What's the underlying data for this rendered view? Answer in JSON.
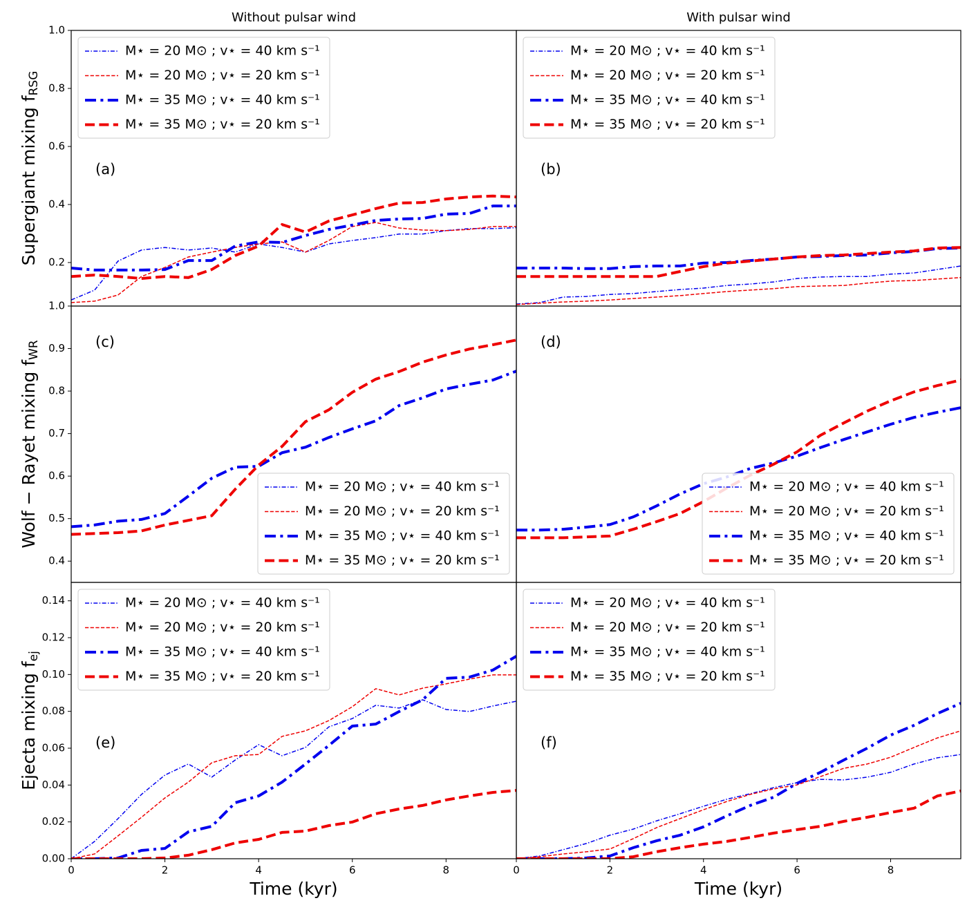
{
  "chart_data": [
    {
      "type": "line",
      "title": "Without pulsar wind",
      "ylabel": "Supergiant mixing f",
      "ylabel_subscript": "RSG",
      "annotation": "(a)",
      "legend": "upper left",
      "x": [
        0,
        0.5,
        1,
        1.5,
        2,
        2.5,
        3,
        3.5,
        4,
        4.5,
        5,
        5.5,
        6,
        6.5,
        7,
        7.5,
        8,
        8.5,
        9,
        9.5
      ],
      "xlim": [
        0,
        9.5
      ],
      "ylim": [
        0.05,
        1.0
      ],
      "yticks": [
        0.2,
        0.4,
        0.6,
        0.8,
        {
          "value": 1.0,
          "label": "1.0"
        }
      ],
      "series": [
        {
          "name": "M⋆ = 20 M⊙ ; v⋆ = 40 km s⁻¹",
          "color": "#0000ee",
          "linestyle": "dashdot",
          "linewidth": 1.5,
          "values": [
            0.071,
            0.105,
            0.205,
            0.243,
            0.252,
            0.243,
            0.25,
            0.236,
            0.264,
            0.252,
            0.236,
            0.264,
            0.276,
            0.286,
            0.298,
            0.298,
            0.31,
            0.317,
            0.317,
            0.32
          ]
        },
        {
          "name": "M⋆ = 20 M⊙ ; v⋆ = 20 km s⁻¹",
          "color": "#ee0000",
          "linestyle": "dashed",
          "linewidth": 1.5,
          "values": [
            0.062,
            0.067,
            0.088,
            0.152,
            0.183,
            0.219,
            0.236,
            0.252,
            0.264,
            0.271,
            0.236,
            0.276,
            0.324,
            0.338,
            0.319,
            0.312,
            0.31,
            0.314,
            0.324,
            0.324
          ]
        },
        {
          "name": "M⋆ = 35 M⊙ ; v⋆ = 40 km s⁻¹",
          "color": "#0000ee",
          "linestyle": "dashdot",
          "linewidth": 4,
          "values": [
            0.181,
            0.174,
            0.174,
            0.174,
            0.176,
            0.207,
            0.207,
            0.257,
            0.271,
            0.269,
            0.293,
            0.314,
            0.329,
            0.345,
            0.35,
            0.352,
            0.367,
            0.369,
            0.395,
            0.395
          ]
        },
        {
          "name": "M⋆ = 35 M⊙ ; v⋆ = 20 km s⁻¹",
          "color": "#ee0000",
          "linestyle": "dashed",
          "linewidth": 4,
          "values": [
            0.152,
            0.157,
            0.152,
            0.145,
            0.152,
            0.148,
            0.176,
            0.224,
            0.257,
            0.331,
            0.305,
            0.343,
            0.364,
            0.386,
            0.405,
            0.407,
            0.419,
            0.426,
            0.429,
            0.426
          ]
        }
      ]
    },
    {
      "type": "line",
      "title": "With pulsar wind",
      "annotation": "(b)",
      "legend": "upper left",
      "x": [
        0,
        0.5,
        1,
        1.5,
        2,
        2.5,
        3,
        3.5,
        4,
        4.5,
        5,
        5.5,
        6,
        6.5,
        7,
        7.5,
        8,
        8.5,
        9,
        9.5
      ],
      "xlim": [
        0,
        9.5
      ],
      "ylim": [
        0.05,
        1.0
      ],
      "series": [
        {
          "name": "M⋆ = 20 M⊙ ; v⋆ = 40 km s⁻¹",
          "color": "#0000ee",
          "linestyle": "dashdot",
          "linewidth": 1.5,
          "values": [
            0.057,
            0.062,
            0.081,
            0.083,
            0.09,
            0.093,
            0.1,
            0.107,
            0.112,
            0.121,
            0.126,
            0.133,
            0.145,
            0.15,
            0.152,
            0.152,
            0.16,
            0.164,
            0.176,
            0.188
          ]
        },
        {
          "name": "M⋆ = 20 M⊙ ; v⋆ = 20 km s⁻¹",
          "color": "#ee0000",
          "linestyle": "dashed",
          "linewidth": 1.5,
          "values": [
            0.055,
            0.06,
            0.064,
            0.067,
            0.071,
            0.076,
            0.081,
            0.086,
            0.093,
            0.1,
            0.105,
            0.11,
            0.117,
            0.119,
            0.121,
            0.129,
            0.136,
            0.138,
            0.143,
            0.148
          ]
        },
        {
          "name": "M⋆ = 35 M⊙ ; v⋆ = 40 km s⁻¹",
          "color": "#0000ee",
          "linestyle": "dashdot",
          "linewidth": 4,
          "values": [
            0.181,
            0.181,
            0.181,
            0.179,
            0.179,
            0.186,
            0.188,
            0.188,
            0.198,
            0.2,
            0.207,
            0.212,
            0.219,
            0.221,
            0.224,
            0.226,
            0.233,
            0.238,
            0.248,
            0.25
          ]
        },
        {
          "name": "M⋆ = 35 M⊙ ; v⋆ = 20 km s⁻¹",
          "color": "#ee0000",
          "linestyle": "dashed",
          "linewidth": 4,
          "values": [
            0.152,
            0.152,
            0.152,
            0.152,
            0.152,
            0.152,
            0.152,
            0.169,
            0.186,
            0.198,
            0.205,
            0.212,
            0.219,
            0.224,
            0.226,
            0.231,
            0.236,
            0.24,
            0.25,
            0.252
          ]
        }
      ]
    },
    {
      "type": "line",
      "ylabel": "Wolf − Rayet mixing f",
      "ylabel_subscript": "WR",
      "annotation": "(c)",
      "legend": "lower right",
      "x": [
        0,
        0.5,
        1,
        1.5,
        2,
        2.5,
        3,
        3.5,
        4,
        4.5,
        5,
        5.5,
        6,
        6.5,
        7,
        7.5,
        8,
        8.5,
        9,
        9.5
      ],
      "xlim": [
        0,
        9.5
      ],
      "ylim": [
        0.35,
        1.0
      ],
      "yticks": [
        0.4,
        0.5,
        0.6,
        0.7,
        0.8,
        0.9,
        {
          "value": 1.0,
          "label": "1.0"
        }
      ],
      "series": [
        {
          "name": "M⋆ = 20 M⊙ ; v⋆ = 40 km s⁻¹",
          "color": "#0000ee",
          "linestyle": "dashdot",
          "linewidth": 1.5,
          "values": [
            null,
            null,
            null,
            null,
            null,
            null,
            null,
            null,
            null,
            null,
            null,
            null,
            null,
            null,
            null,
            null,
            null,
            null,
            null,
            null
          ]
        },
        {
          "name": "M⋆ = 20 M⊙ ; v⋆ = 20 km s⁻¹",
          "color": "#ee0000",
          "linestyle": "dashed",
          "linewidth": 1.5,
          "values": [
            null,
            null,
            null,
            null,
            null,
            null,
            null,
            null,
            null,
            null,
            null,
            null,
            null,
            null,
            null,
            null,
            null,
            null,
            null,
            null
          ]
        },
        {
          "name": "M⋆ = 35 M⊙ ; v⋆ = 40 km s⁻¹",
          "color": "#0000ee",
          "linestyle": "dashdot",
          "linewidth": 4,
          "values": [
            0.481,
            0.485,
            0.494,
            0.498,
            0.512,
            0.553,
            0.595,
            0.621,
            0.623,
            0.655,
            0.668,
            0.691,
            0.711,
            0.73,
            0.766,
            0.784,
            0.805,
            0.816,
            0.826,
            0.847
          ]
        },
        {
          "name": "M⋆ = 35 M⊙ ; v⋆ = 20 km s⁻¹",
          "color": "#ee0000",
          "linestyle": "dashed",
          "linewidth": 4,
          "values": [
            0.463,
            0.465,
            0.467,
            0.471,
            0.485,
            0.496,
            0.507,
            0.569,
            0.626,
            0.67,
            0.728,
            0.756,
            0.797,
            0.828,
            0.846,
            0.868,
            0.885,
            0.899,
            0.909,
            0.92
          ]
        }
      ]
    },
    {
      "type": "line",
      "annotation": "(d)",
      "legend": "lower right",
      "x": [
        0,
        0.5,
        1,
        1.5,
        2,
        2.5,
        3,
        3.5,
        4,
        4.5,
        5,
        5.5,
        6,
        6.5,
        7,
        7.5,
        8,
        8.5,
        9,
        9.5
      ],
      "xlim": [
        0,
        9.5
      ],
      "ylim": [
        0.35,
        1.0
      ],
      "series": [
        {
          "name": "M⋆ = 20 M⊙ ; v⋆ = 40 km s⁻¹",
          "color": "#0000ee",
          "linestyle": "dashdot",
          "linewidth": 1.5,
          "values": [
            null,
            null,
            null,
            null,
            null,
            null,
            null,
            null,
            null,
            null,
            null,
            null,
            null,
            null,
            null,
            null,
            null,
            null,
            null,
            null
          ]
        },
        {
          "name": "M⋆ = 20 M⊙ ; v⋆ = 20 km s⁻¹",
          "color": "#ee0000",
          "linestyle": "dashed",
          "linewidth": 1.5,
          "values": [
            null,
            null,
            null,
            null,
            null,
            null,
            null,
            null,
            null,
            null,
            null,
            null,
            null,
            null,
            null,
            null,
            null,
            null,
            null,
            null
          ]
        },
        {
          "name": "M⋆ = 35 M⊙ ; v⋆ = 40 km s⁻¹",
          "color": "#0000ee",
          "linestyle": "dashdot",
          "linewidth": 4,
          "values": [
            0.473,
            0.473,
            0.475,
            0.48,
            0.486,
            0.504,
            0.53,
            0.558,
            0.582,
            0.598,
            0.618,
            0.631,
            0.647,
            0.667,
            0.686,
            0.704,
            0.722,
            0.738,
            0.75,
            0.761
          ]
        },
        {
          "name": "M⋆ = 35 M⊙ ; v⋆ = 20 km s⁻¹",
          "color": "#ee0000",
          "linestyle": "dashed",
          "linewidth": 4,
          "values": [
            0.455,
            0.455,
            0.455,
            0.457,
            0.459,
            0.475,
            0.493,
            0.512,
            0.54,
            0.572,
            0.602,
            0.628,
            0.657,
            0.696,
            0.725,
            0.753,
            0.777,
            0.798,
            0.813,
            0.826
          ]
        }
      ]
    },
    {
      "type": "line",
      "ylabel": "Ejecta mixing f",
      "ylabel_subscript": "ej",
      "xlabel": "Time (kyr)",
      "annotation": "(e)",
      "legend": "upper left",
      "x": [
        0,
        0.5,
        1,
        1.5,
        2,
        2.5,
        3,
        3.5,
        4,
        4.5,
        5,
        5.5,
        6,
        6.5,
        7,
        7.5,
        8,
        8.5,
        9,
        9.5
      ],
      "xlim": [
        0,
        9.5
      ],
      "ylim": [
        0,
        0.15
      ],
      "xticks": [
        0,
        2,
        4,
        6,
        8
      ],
      "yticks": [
        {
          "value": 0,
          "label": "0.00"
        },
        {
          "value": 0.02,
          "label": "0.02"
        },
        {
          "value": 0.04,
          "label": "0.04"
        },
        {
          "value": 0.06,
          "label": "0.06"
        },
        {
          "value": 0.08,
          "label": "0.08"
        },
        {
          "value": 0.1,
          "label": "0.10"
        },
        {
          "value": 0.12,
          "label": "0.12"
        },
        {
          "value": 0.14,
          "label": "0.14"
        }
      ],
      "series": [
        {
          "name": "M⋆ = 20 M⊙ ; v⋆ = 40 km s⁻¹",
          "color": "#0000ee",
          "linestyle": "dashdot",
          "linewidth": 1.5,
          "values": [
            0,
            0.0094,
            0.0218,
            0.0349,
            0.0454,
            0.0514,
            0.0443,
            0.0536,
            0.0619,
            0.0559,
            0.0604,
            0.0716,
            0.0761,
            0.0833,
            0.0818,
            0.0863,
            0.081,
            0.0799,
            0.0829,
            0.0855
          ]
        },
        {
          "name": "M⋆ = 20 M⊙ ; v⋆ = 20 km s⁻¹",
          "color": "#ee0000",
          "linestyle": "dashed",
          "linewidth": 1.5,
          "values": [
            0,
            0.0026,
            0.0124,
            0.0225,
            0.033,
            0.0416,
            0.0521,
            0.0559,
            0.0566,
            0.0664,
            0.0694,
            0.075,
            0.0825,
            0.0923,
            0.0889,
            0.0926,
            0.0949,
            0.0975,
            0.0998,
            0.0998
          ]
        },
        {
          "name": "M⋆ = 35 M⊙ ; v⋆ = 40 km s⁻¹",
          "color": "#0000ee",
          "linestyle": "dashdot",
          "linewidth": 4,
          "values": [
            0,
            0,
            0.0004,
            0.0045,
            0.0056,
            0.0146,
            0.0176,
            0.0304,
            0.0341,
            0.0416,
            0.0514,
            0.0615,
            0.072,
            0.0731,
            0.0799,
            0.0863,
            0.0979,
            0.0986,
            0.1024,
            0.1099
          ]
        },
        {
          "name": "M⋆ = 35 M⊙ ; v⋆ = 20 km s⁻¹",
          "color": "#ee0000",
          "linestyle": "dashed",
          "linewidth": 4,
          "values": [
            0,
            0,
            0,
            0,
            0.0004,
            0.0019,
            0.0049,
            0.0086,
            0.0105,
            0.0143,
            0.015,
            0.018,
            0.0199,
            0.0244,
            0.027,
            0.0289,
            0.0319,
            0.0341,
            0.036,
            0.0371
          ]
        }
      ]
    },
    {
      "type": "line",
      "xlabel": "Time (kyr)",
      "annotation": "(f)",
      "legend": "upper left",
      "x": [
        0,
        0.5,
        1,
        1.5,
        2,
        2.5,
        3,
        3.5,
        4,
        4.5,
        5,
        5.5,
        6,
        6.5,
        7,
        7.5,
        8,
        8.5,
        9,
        9.5
      ],
      "xlim": [
        0,
        9.5
      ],
      "ylim": [
        0,
        0.15
      ],
      "xticks": [
        0,
        2,
        4,
        6,
        8
      ],
      "series": [
        {
          "name": "M⋆ = 20 M⊙ ; v⋆ = 40 km s⁻¹",
          "color": "#0000ee",
          "linestyle": "dashdot",
          "linewidth": 1.5,
          "values": [
            0,
            0.0015,
            0.0049,
            0.0083,
            0.0128,
            0.0161,
            0.0206,
            0.0244,
            0.0285,
            0.0323,
            0.0353,
            0.0386,
            0.0413,
            0.0431,
            0.0428,
            0.0443,
            0.0469,
            0.0514,
            0.0548,
            0.0566
          ]
        },
        {
          "name": "M⋆ = 20 M⊙ ; v⋆ = 20 km s⁻¹",
          "color": "#ee0000",
          "linestyle": "dashed",
          "linewidth": 1.5,
          "values": [
            0,
            0.0011,
            0.0026,
            0.0038,
            0.0053,
            0.0109,
            0.0169,
            0.0218,
            0.0266,
            0.0311,
            0.0349,
            0.0379,
            0.0401,
            0.0446,
            0.0491,
            0.0514,
            0.0551,
            0.0604,
            0.0656,
            0.0694
          ]
        },
        {
          "name": "M⋆ = 35 M⊙ ; v⋆ = 40 km s⁻¹",
          "color": "#0000ee",
          "linestyle": "dashdot",
          "linewidth": 4,
          "values": [
            0,
            0,
            0,
            0.0004,
            0.0015,
            0.006,
            0.0098,
            0.0128,
            0.0173,
            0.0233,
            0.0289,
            0.0334,
            0.0409,
            0.0469,
            0.0536,
            0.06,
            0.0671,
            0.0724,
            0.0788,
            0.0844
          ]
        },
        {
          "name": "M⋆ = 35 M⊙ ; v⋆ = 20 km s⁻¹",
          "color": "#ee0000",
          "linestyle": "dashed",
          "linewidth": 4,
          "values": [
            0,
            0,
            0,
            0,
            0,
            0.0011,
            0.0038,
            0.006,
            0.0079,
            0.0094,
            0.0116,
            0.0139,
            0.0158,
            0.0176,
            0.0203,
            0.0225,
            0.0251,
            0.0274,
            0.0341,
            0.0368
          ]
        }
      ]
    }
  ]
}
